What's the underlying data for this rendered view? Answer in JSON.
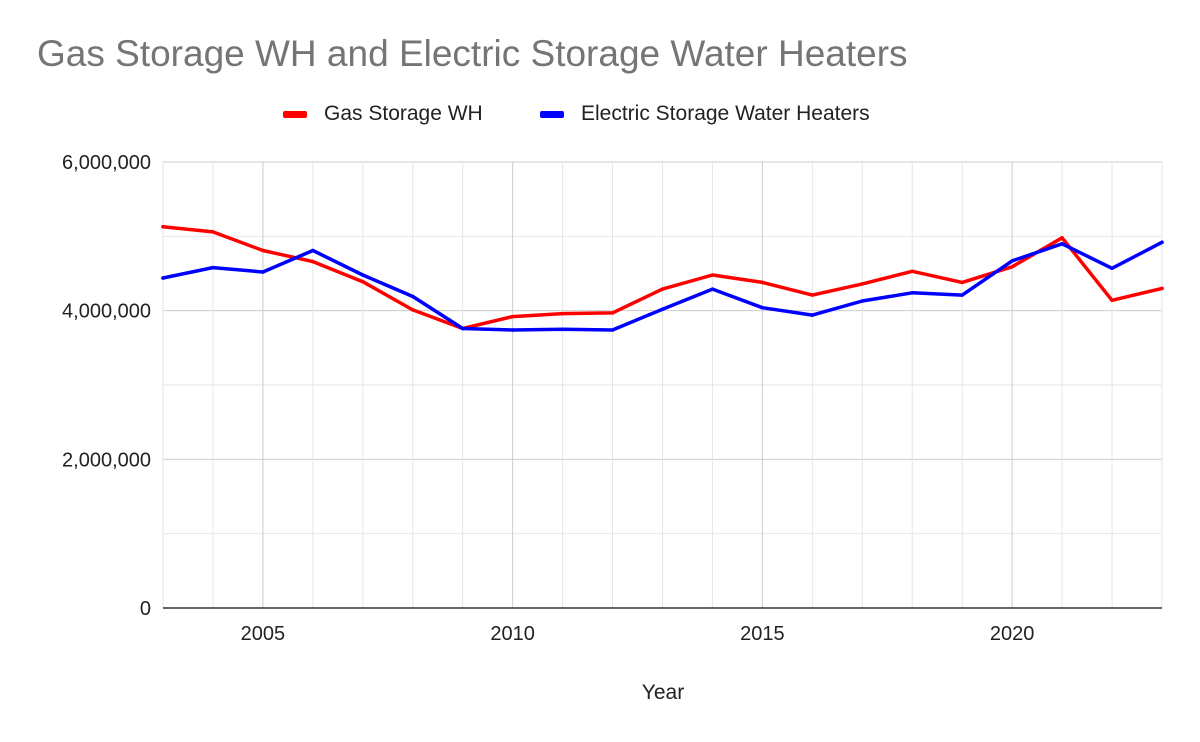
{
  "chart_data": {
    "type": "line",
    "title": "Gas Storage WH and Electric Storage Water Heaters",
    "xlabel": "Year",
    "ylabel": "",
    "x": [
      2003,
      2004,
      2005,
      2006,
      2007,
      2008,
      2009,
      2010,
      2011,
      2012,
      2013,
      2014,
      2015,
      2016,
      2017,
      2018,
      2019,
      2020,
      2021,
      2022,
      2023
    ],
    "xlim": [
      2003,
      2023
    ],
    "ylim": [
      0,
      6000000
    ],
    "x_ticks": [
      2005,
      2010,
      2015,
      2020
    ],
    "x_tick_labels": [
      "2005",
      "2010",
      "2015",
      "2020"
    ],
    "y_ticks": [
      0,
      2000000,
      4000000,
      6000000
    ],
    "y_tick_labels": [
      "0",
      "2,000,000",
      "4,000,000",
      "6,000,000"
    ],
    "grid": true,
    "legend_position": "top",
    "series": [
      {
        "name": "Gas Storage WH",
        "color": "#ff0000",
        "values": [
          5130000,
          5060000,
          4810000,
          4660000,
          4390000,
          4010000,
          3760000,
          3920000,
          3960000,
          3970000,
          4290000,
          4480000,
          4380000,
          4210000,
          4360000,
          4530000,
          4380000,
          4590000,
          4980000,
          4140000,
          4300000
        ]
      },
      {
        "name": "Electric Storage Water Heaters",
        "color": "#0000ff",
        "values": [
          4440000,
          4580000,
          4520000,
          4810000,
          4480000,
          4190000,
          3760000,
          3740000,
          3750000,
          3740000,
          4020000,
          4290000,
          4040000,
          3940000,
          4130000,
          4240000,
          4210000,
          4670000,
          4900000,
          4570000,
          4920000
        ]
      }
    ]
  }
}
